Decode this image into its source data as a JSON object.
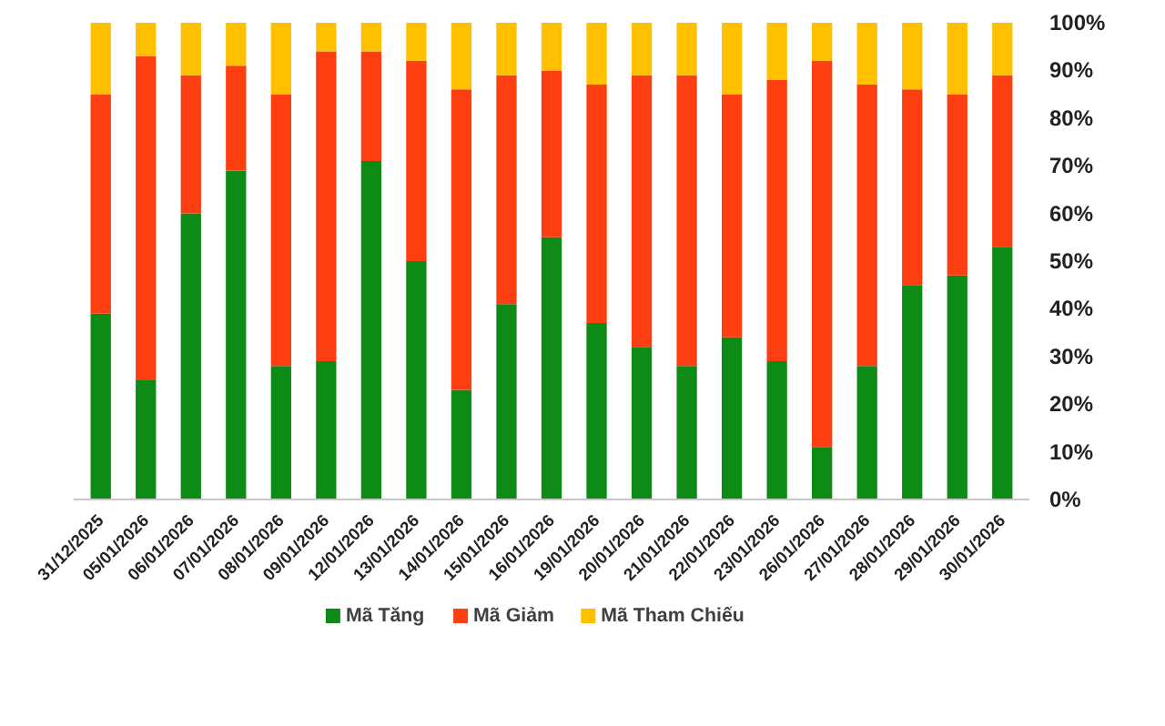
{
  "chart_data": {
    "type": "bar",
    "stacked": true,
    "categories": [
      "31/12/2025",
      "05/01/2026",
      "06/01/2026",
      "07/01/2026",
      "08/01/2026",
      "09/01/2026",
      "12/01/2026",
      "13/01/2026",
      "14/01/2026",
      "15/01/2026",
      "16/01/2026",
      "19/01/2026",
      "20/01/2026",
      "21/01/2026",
      "22/01/2026",
      "23/01/2026",
      "26/01/2026",
      "27/01/2026",
      "28/01/2026",
      "29/01/2026",
      "30/01/2026"
    ],
    "series": [
      {
        "name": "Mã Tăng",
        "color": "#0e8a16",
        "values": [
          39,
          25,
          60,
          69,
          28,
          29,
          71,
          50,
          23,
          41,
          55,
          37,
          32,
          28,
          34,
          29,
          11,
          28,
          45,
          47,
          53
        ]
      },
      {
        "name": "Mã Giảm",
        "color": "#fd3e10",
        "values": [
          46,
          68,
          29,
          22,
          57,
          65,
          23,
          42,
          63,
          48,
          35,
          50,
          57,
          61,
          51,
          59,
          81,
          59,
          41,
          38,
          36
        ]
      },
      {
        "name": "Mã Tham Chiếu",
        "color": "#ffc000",
        "values": [
          15,
          7,
          11,
          9,
          15,
          6,
          6,
          8,
          14,
          11,
          10,
          13,
          11,
          11,
          15,
          12,
          8,
          13,
          14,
          15,
          11
        ]
      }
    ],
    "ylim": [
      0,
      100
    ],
    "yticks": [
      {
        "value": 0,
        "label": "0%"
      },
      {
        "value": 10,
        "label": "10%"
      },
      {
        "value": 20,
        "label": "20%"
      },
      {
        "value": 30,
        "label": "30%"
      },
      {
        "value": 40,
        "label": "40%"
      },
      {
        "value": 50,
        "label": "50%"
      },
      {
        "value": 60,
        "label": "60%"
      },
      {
        "value": 70,
        "label": "70%"
      },
      {
        "value": 80,
        "label": "80%"
      },
      {
        "value": 90,
        "label": "90%"
      },
      {
        "value": 100,
        "label": "100%"
      }
    ],
    "grid": false,
    "legend": "bottom"
  }
}
